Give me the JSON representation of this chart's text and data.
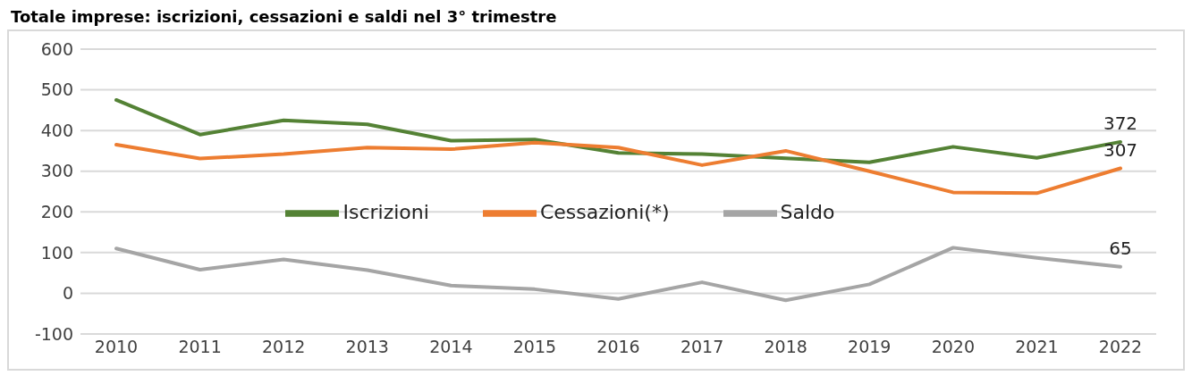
{
  "chart_data": {
    "type": "line",
    "title": "Totale imprese: iscrizioni, cessazioni e saldi nel 3° trimestre",
    "categories": [
      "2010",
      "2011",
      "2012",
      "2013",
      "2014",
      "2015",
      "2016",
      "2017",
      "2018",
      "2019",
      "2020",
      "2021",
      "2022"
    ],
    "series": [
      {
        "name": "Iscrizioni",
        "color": "#548235",
        "values": [
          475,
          390,
          425,
          415,
          375,
          378,
          345,
          342,
          332,
          322,
          360,
          333,
          372
        ],
        "value_labels": [
          null,
          null,
          null,
          null,
          null,
          null,
          null,
          null,
          null,
          null,
          null,
          null,
          "372"
        ]
      },
      {
        "name": "Cessazioni(*)",
        "color": "#ed7d31",
        "values": [
          365,
          331,
          342,
          358,
          354,
          370,
          358,
          315,
          350,
          300,
          248,
          246,
          307
        ],
        "value_labels": [
          null,
          null,
          null,
          null,
          null,
          null,
          null,
          null,
          null,
          null,
          null,
          null,
          "307"
        ]
      },
      {
        "name": "Saldo",
        "color": "#a5a5a5",
        "values": [
          110,
          58,
          83,
          57,
          19,
          10,
          -14,
          27,
          -17,
          22,
          112,
          87,
          65
        ],
        "value_labels": [
          null,
          null,
          null,
          null,
          null,
          null,
          null,
          null,
          null,
          null,
          null,
          null,
          "65"
        ]
      }
    ],
    "ylim": [
      -100,
      600
    ],
    "yticks": [
      -100,
      0,
      100,
      200,
      300,
      400,
      500,
      600
    ],
    "grid": "y",
    "legend": "center",
    "marker": "none",
    "line_style": "solid"
  }
}
